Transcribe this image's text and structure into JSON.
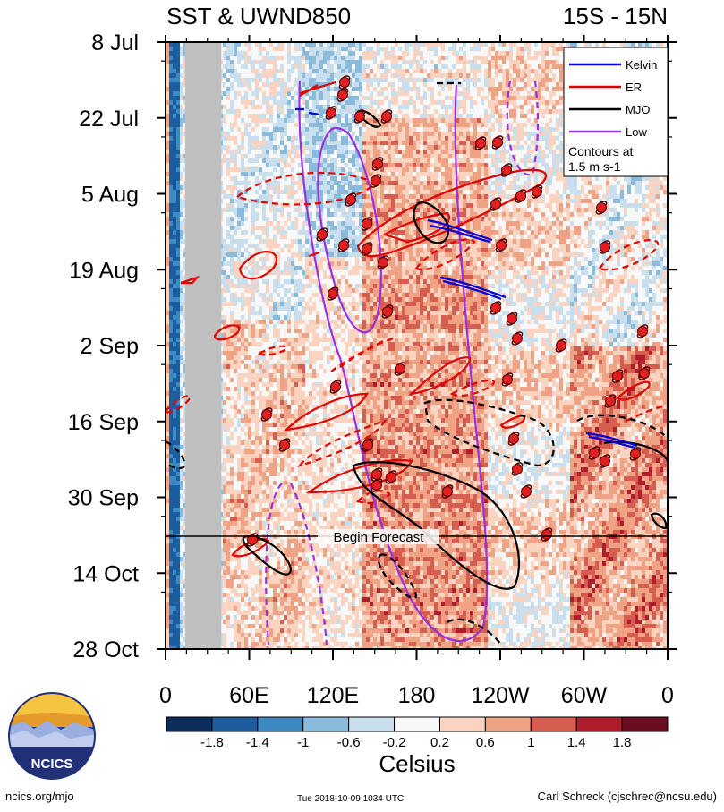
{
  "header": {
    "title_left": "SST & UWND850",
    "title_right": "15S - 15N"
  },
  "legend": {
    "items": [
      {
        "label": "Kelvin",
        "color": "#0000dd"
      },
      {
        "label": "ER",
        "color": "#e00000"
      },
      {
        "label": "MJO",
        "color": "#000000"
      },
      {
        "label": "Low",
        "color": "#9b30e0"
      }
    ],
    "note_line1": "Contours at",
    "note_line2": "1.5 m s-1"
  },
  "forecast_label": "Begin Forecast",
  "colorbar": {
    "ticks": [
      "-1.8",
      "-1.4",
      "-1",
      "-0.6",
      "-0.2",
      "0.2",
      "0.6",
      "1",
      "1.4",
      "1.8"
    ],
    "unit_label": "Celsius",
    "colors": [
      "#0b2d5c",
      "#1c5d9f",
      "#3d89c4",
      "#8bbbdc",
      "#c9dfee",
      "#f8f8f8",
      "#fad4c0",
      "#f0a285",
      "#d55e50",
      "#b01d2c",
      "#6b0d20"
    ]
  },
  "footer": {
    "left": "ncics.org/mjo",
    "middle": "Tue 2018-10-09 1034 UTC",
    "right": "Carl Schreck (cjschrec@ncsu.edu)",
    "logo_text": "NCICS"
  },
  "chart_data": {
    "type": "heatmap",
    "title": "SST & UWND850",
    "region": "15S - 15N",
    "x_ticks": [
      "0",
      "60E",
      "120E",
      "180",
      "120W",
      "60W",
      "0"
    ],
    "x_range_deg_east": [
      0,
      360
    ],
    "y_ticks": [
      "8 Jul",
      "22 Jul",
      "5 Aug",
      "19 Aug",
      "2 Sep",
      "16 Sep",
      "30 Sep",
      "14 Oct",
      "28 Oct"
    ],
    "y_range": [
      "8 Jul",
      "28 Oct"
    ],
    "forecast_start": "7 Oct",
    "colorbar_unit": "Celsius",
    "colorbar_levels": [
      -1.8,
      -1.4,
      -1,
      -0.6,
      -0.2,
      0.2,
      0.6,
      1,
      1.4,
      1.8
    ],
    "contour_interval": "1.5 m s-1",
    "contour_series": [
      "Kelvin",
      "ER",
      "MJO",
      "Low"
    ]
  }
}
